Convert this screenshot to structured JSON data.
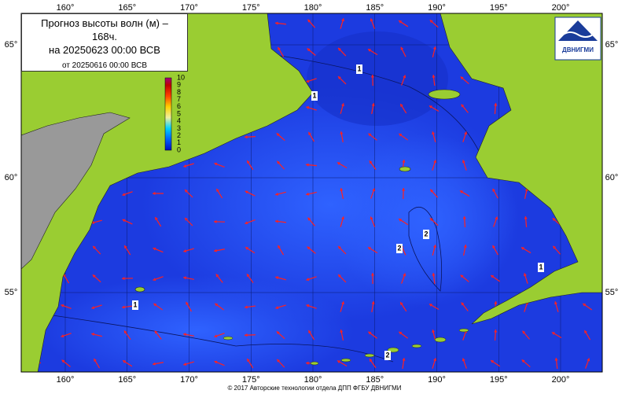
{
  "header": {
    "title": "Прогноз высоты волн (м) – 168ч.",
    "valid": "на 20250623 00:00 ВСВ",
    "issued": "от 20250616 00:00 ВСВ"
  },
  "logo": {
    "text": "ДВНИГМИ"
  },
  "colorbar": {
    "labels": [
      0,
      1,
      2,
      3,
      4,
      5,
      6,
      7,
      8,
      9,
      10
    ]
  },
  "lon_ticks": [
    {
      "value": 160,
      "label": "160°"
    },
    {
      "value": 165,
      "label": "165°"
    },
    {
      "value": 170,
      "label": "170°"
    },
    {
      "value": 175,
      "label": "175°"
    },
    {
      "value": 180,
      "label": "180°"
    },
    {
      "value": 185,
      "label": "185°"
    },
    {
      "value": 190,
      "label": "190°"
    },
    {
      "value": 195,
      "label": "195°"
    },
    {
      "value": 200,
      "label": "200°"
    }
  ],
  "lat_ticks": [
    {
      "value": 65,
      "label": "65°"
    },
    {
      "value": 60,
      "label": "60°"
    },
    {
      "value": 55,
      "label": "55°"
    }
  ],
  "contour_labels": [
    1,
    1,
    1,
    1,
    2,
    2,
    2
  ],
  "footer": "© 2017 Авторские технологии отдела ДПП ФГБУ ДВНИГМИ"
}
